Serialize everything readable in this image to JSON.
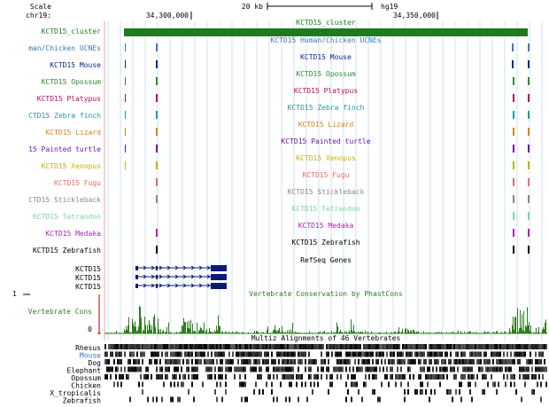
{
  "ruler": {
    "scale_label": "Scale",
    "chrom_label": "chr19:",
    "scale_bar_text": "20 kb",
    "assembly": "hg19",
    "ticks": [
      "34,300,000",
      "34,350,000"
    ]
  },
  "colors": {
    "cluster": "#1f7a1f",
    "mouse": "#0b2a8c",
    "human_chicken": "#3a78c2",
    "opossum": "#2e8b2e",
    "platypus": "#b0105a",
    "zebra_finch": "#1a9aa8",
    "lizard": "#d9821e",
    "painted_turtle": "#6a14b0",
    "xenopus": "#c9b000",
    "fugu": "#e3705e",
    "stickleback": "#888888",
    "tetraodon": "#7fd6a6",
    "medaka": "#b51eb5",
    "zebrafish": "#000000",
    "refseq": "#0c1a7a",
    "conservation": "#2f7d20",
    "axis_red": "#b00000"
  },
  "tracks": [
    {
      "key": "cluster",
      "left_label": "KCTD15_cluster",
      "center_title": "KCTD15_cluster"
    },
    {
      "key": "human_chicken",
      "left_label": "man/Chicken UCNEs",
      "center_title": "KCTD15 Human/Chicken UCNEs"
    },
    {
      "key": "mouse",
      "left_label": "KCTD15 Mouse",
      "center_title": "KCTD15 Mouse"
    },
    {
      "key": "opossum",
      "left_label": "KCTD15 Opossum",
      "center_title": "KCTD15 Opossum"
    },
    {
      "key": "platypus",
      "left_label": "KCTD15 Platypus",
      "center_title": "KCTD15 Platypus"
    },
    {
      "key": "zebra_finch",
      "left_label": "CTD15 Zebra finch",
      "center_title": "KCTD15 Zebra finch"
    },
    {
      "key": "lizard",
      "left_label": "KCTD15 Lizard",
      "center_title": "KCTD15 Lizard"
    },
    {
      "key": "painted_turtle",
      "left_label": "15 Painted turtle",
      "center_title": "KCTD15 Painted turtle"
    },
    {
      "key": "xenopus",
      "left_label": "KCTD15 Xenopus",
      "center_title": "KCTD15 Xenopus"
    },
    {
      "key": "fugu",
      "left_label": "KCTD15 Fugu",
      "center_title": "KCTD15 Fugu"
    },
    {
      "key": "stickleback",
      "left_label": "CTD15 Stickleback",
      "center_title": "KCTD15 Stickleback"
    },
    {
      "key": "tetraodon",
      "left_label": "KCTD15 Tetraodon",
      "center_title": "KCTD15 Tetraodon"
    },
    {
      "key": "medaka",
      "left_label": "KCTD15 Medaka",
      "center_title": "KCTD15 Medaka"
    },
    {
      "key": "zebrafish",
      "left_label": "KCTD15 Zebrafish",
      "center_title": "KCTD15 Zebrafish"
    }
  ],
  "refseq": {
    "title": "RefSeq Genes",
    "genes": [
      "KCTD15",
      "KCTD15",
      "KCTD15"
    ]
  },
  "conservation": {
    "title": "Vertebrate Conservation by PhastCons",
    "left_label": "Vertebrate Cons",
    "axis_max": "1",
    "axis_min": "0"
  },
  "multiz": {
    "title": "Multiz Alignments of 46 Vertebrates",
    "species": [
      "Rhesus",
      "Mouse",
      "Dog",
      "Elephant",
      "Opossum",
      "Chicken",
      "X_tropicalis",
      "Zebrafish"
    ]
  }
}
